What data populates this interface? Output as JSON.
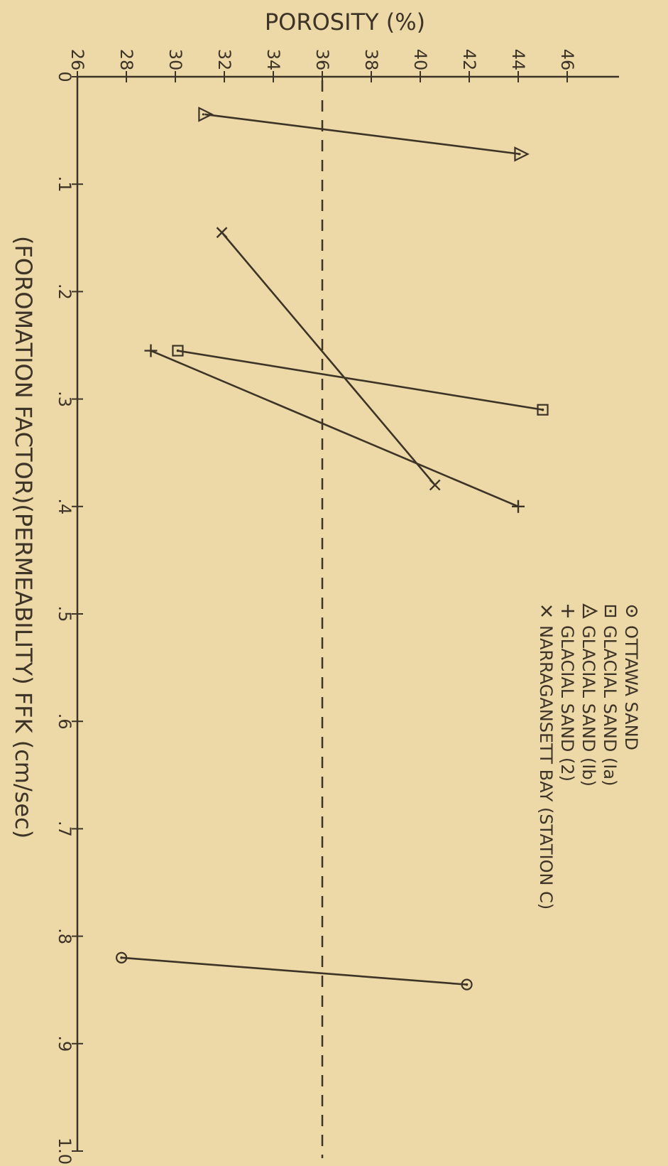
{
  "chart_data": {
    "type": "line",
    "title": "",
    "ylabel": "POROSITY (%)",
    "xlabel": "(FOROMATION FACTOR)(PERMEABILITY) FFK   (cm/sec)",
    "x_ticks": [
      0,
      0.1,
      0.2,
      0.3,
      0.4,
      0.5,
      0.6,
      0.7,
      0.8,
      0.9,
      1.0
    ],
    "x_tick_labels": [
      "0",
      ".1",
      ".2",
      ".3",
      ".4",
      ".5",
      ".6",
      ".7",
      ".8",
      ".9",
      "1.0"
    ],
    "y_ticks": [
      26,
      28,
      30,
      32,
      34,
      36,
      38,
      40,
      42,
      44,
      46
    ],
    "y_tick_labels": [
      "26",
      "28",
      "30",
      "32",
      "34",
      "36",
      "38",
      "40",
      "42",
      "44",
      "46"
    ],
    "xlim": [
      0,
      1.0
    ],
    "ylim": [
      26,
      47
    ],
    "grid": false,
    "legend_placement": "right",
    "reference_line": {
      "y": 36,
      "style": "dashed"
    },
    "series": [
      {
        "name": "OTTAWA SAND",
        "marker": "circle-dot",
        "points": [
          [
            0.82,
            27.8
          ],
          [
            0.845,
            41.9
          ]
        ]
      },
      {
        "name": "GLACIAL SAND (Ia)",
        "marker": "square-dot",
        "points": [
          [
            0.255,
            30.1
          ],
          [
            0.31,
            45.0
          ]
        ]
      },
      {
        "name": "GLACIAL SAND (Ib)",
        "marker": "triangle",
        "points": [
          [
            0.035,
            31.2
          ],
          [
            0.072,
            44.1
          ]
        ]
      },
      {
        "name": "GLACIAL SAND (2)",
        "marker": "plus",
        "points": [
          [
            0.255,
            29.0
          ],
          [
            0.4,
            44.0
          ]
        ]
      },
      {
        "name": "NARRAGANSETT BAY (STATION C)",
        "marker": "x",
        "points": [
          [
            0.145,
            31.9
          ],
          [
            0.38,
            40.6
          ]
        ]
      }
    ],
    "legend_symbols": [
      "o",
      "□",
      "△",
      "+",
      "x"
    ]
  },
  "colors": {
    "background": "#ecd9a7",
    "ink": "#3d3327"
  }
}
